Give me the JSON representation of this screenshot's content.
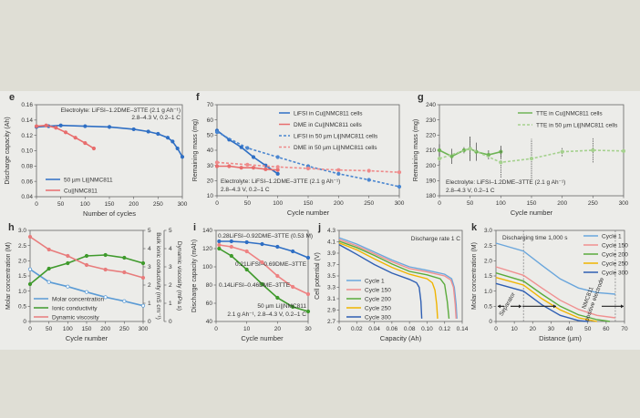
{
  "colors": {
    "outer_bg": "#dfded5",
    "figure_bg": "#ecece9",
    "axis": "#555555"
  },
  "chart_data": [
    {
      "id": "e",
      "panel_label": "e",
      "type": "line",
      "xlabel": "Number of cycles",
      "ylabel": "Discharge capacity (Ah)",
      "xlim": [
        0,
        300
      ],
      "ylim": [
        0.04,
        0.16
      ],
      "xticks": [
        "0",
        "50",
        "100",
        "150",
        "200",
        "250",
        "300"
      ],
      "yticks": [
        "0.04",
        "0.06",
        "0.08",
        "0.10",
        "0.12",
        "0.14",
        "0.16"
      ],
      "annotations": [
        "Electrolyte: LiFSI–1.2DME–3TTE (2.1 g Ah⁻¹)",
        "2.8–4.3 V, 0.2–1 C"
      ],
      "series": [
        {
          "name": "50 µm Li||NMC811",
          "color": "#2f6fc4",
          "dash": false,
          "x": [
            0,
            25,
            50,
            100,
            150,
            200,
            230,
            250,
            270,
            280,
            290,
            300
          ],
          "y": [
            0.131,
            0.132,
            0.133,
            0.132,
            0.131,
            0.128,
            0.125,
            0.122,
            0.117,
            0.112,
            0.103,
            0.092
          ]
        },
        {
          "name": "Cu||NMC811",
          "color": "#e86d6d",
          "dash": false,
          "x": [
            0,
            20,
            40,
            60,
            80,
            100,
            118
          ],
          "y": [
            0.132,
            0.133,
            0.13,
            0.124,
            0.117,
            0.11,
            0.103
          ]
        }
      ]
    },
    {
      "id": "f",
      "panel_label": "f",
      "type": "line",
      "xlabel": "Cycle number",
      "ylabel": "Remaining mass (mg)",
      "xlim": [
        0,
        300
      ],
      "ylim": [
        10,
        70
      ],
      "xticks": [
        "0",
        "50",
        "100",
        "150",
        "200",
        "250",
        "300"
      ],
      "yticks": [
        "10",
        "20",
        "30",
        "40",
        "50",
        "60",
        "70"
      ],
      "annotations": [
        "Electrolyte: LiFSI–1.2DME–3TTE (2.1 g Ah⁻¹)",
        "2.8–4.3 V, 0.2–1 C"
      ],
      "series": [
        {
          "name": "LiFSI in Cu||NMC811 cells",
          "color": "#2f6fc4",
          "dash": false,
          "x": [
            0,
            20,
            40,
            60,
            80,
            100
          ],
          "y": [
            53,
            47,
            42,
            35.5,
            30,
            24.5
          ]
        },
        {
          "name": "DME in Cu||NMC811 cells",
          "color": "#e86d6d",
          "dash": false,
          "x": [
            0,
            20,
            40,
            60,
            80,
            100
          ],
          "y": [
            29.5,
            29.5,
            28.5,
            28.5,
            27.5,
            27
          ]
        },
        {
          "name": "LiFSI in 50 µm Li||NMC811 cells",
          "color": "#4a86d0",
          "dash": true,
          "x": [
            0,
            50,
            100,
            150,
            200,
            250,
            300
          ],
          "y": [
            52,
            41.5,
            35.5,
            29.5,
            24.5,
            20.5,
            16
          ]
        },
        {
          "name": "DME in 50 µm Li||NMC811 cells",
          "color": "#ee8a8a",
          "dash": true,
          "x": [
            0,
            50,
            100,
            150,
            200,
            250,
            300
          ],
          "y": [
            32,
            30.5,
            29,
            28,
            27,
            26.5,
            25.5
          ]
        }
      ]
    },
    {
      "id": "g",
      "panel_label": "g",
      "type": "line",
      "xlabel": "Cycle number",
      "ylabel": "Remaining mass (mg)",
      "xlim": [
        0,
        300
      ],
      "ylim": [
        180,
        240
      ],
      "xticks": [
        "0",
        "50",
        "100",
        "150",
        "200",
        "250",
        "300"
      ],
      "yticks": [
        "180",
        "190",
        "200",
        "210",
        "220",
        "230",
        "240"
      ],
      "annotations": [
        "Electrolyte: LiFSI–1.2DME–3TTE (2.1 g Ah⁻¹)",
        "2.8–4.3 V, 0.2–1 C"
      ],
      "series": [
        {
          "name": "TTE in Cu||NMC811 cells",
          "color": "#6fb456",
          "dash": false,
          "x": [
            0,
            20,
            40,
            50,
            60,
            80,
            100
          ],
          "y": [
            210,
            206,
            210,
            211,
            209,
            207,
            209
          ],
          "error": [
            4,
            5,
            2,
            8,
            6,
            3,
            4
          ]
        },
        {
          "name": "TTE in 50 µm Li||NMC811 cells",
          "color": "#a5d18e",
          "dash": true,
          "x": [
            0,
            50,
            100,
            150,
            200,
            250,
            300
          ],
          "y": [
            204.5,
            211,
            202,
            204.5,
            209,
            210,
            209.5
          ],
          "error": [
            4,
            8,
            10,
            13,
            3,
            8,
            0
          ]
        }
      ]
    },
    {
      "id": "h",
      "panel_label": "h",
      "type": "line",
      "xlabel": "Cycle number",
      "ylabel": "Molar concentration (M)",
      "y2label": "Bulk ionic conductivity (mS cm⁻¹)",
      "y3label": "Dynamic viscosity (mPa s)",
      "xlim": [
        0,
        300
      ],
      "ylim": [
        0,
        3
      ],
      "y2lim": [
        0,
        5
      ],
      "y3lim": [
        0,
        5
      ],
      "xticks": [
        "0",
        "50",
        "100",
        "150",
        "200",
        "250",
        "300"
      ],
      "yticks": [
        "0",
        "0.5",
        "1.0",
        "1.5",
        "2.0",
        "2.5",
        "3.0"
      ],
      "y2ticks": [
        "0",
        "1",
        "2",
        "3",
        "4",
        "5"
      ],
      "y3ticks": [
        "0",
        "1",
        "2",
        "3",
        "4",
        "5"
      ],
      "y2color": "#4f9a36",
      "y3color": "#e87c7c",
      "series": [
        {
          "name": "Molar concentration",
          "color": "#5b9bd5",
          "dash": false,
          "axis": "y",
          "marker": "open",
          "x": [
            0,
            50,
            100,
            150,
            200,
            250,
            300
          ],
          "y": [
            1.72,
            1.3,
            1.15,
            0.97,
            0.8,
            0.67,
            0.52
          ]
        },
        {
          "name": "Ionic conductivity",
          "color": "#3f9a2c",
          "dash": false,
          "axis": "y2",
          "x": [
            0,
            50,
            100,
            150,
            200,
            250,
            300
          ],
          "y": [
            2.05,
            2.9,
            3.2,
            3.6,
            3.65,
            3.5,
            3.2
          ]
        },
        {
          "name": "Dynamic viscosity",
          "color": "#e87c7c",
          "dash": false,
          "axis": "y3",
          "x": [
            0,
            50,
            100,
            150,
            200,
            250,
            300
          ],
          "y": [
            4.65,
            3.95,
            3.6,
            3.1,
            2.85,
            2.7,
            2.4
          ]
        }
      ]
    },
    {
      "id": "i",
      "panel_label": "i",
      "type": "line",
      "xlabel": "Cycle number",
      "ylabel": "Discharge capacity (mAh)",
      "xlim": [
        0,
        30
      ],
      "ylim": [
        40,
        140
      ],
      "xticks": [
        "0",
        "10",
        "20",
        "30"
      ],
      "yticks": [
        "40",
        "60",
        "80",
        "100",
        "120",
        "140"
      ],
      "annotations": [
        "0.28LiFSI–0.92DME–3TTE (0.53 M)",
        "0.21LiFSI–0.69DME–3TTE",
        "0.14LiFSI–0.46DME–3TTE",
        "50 µm Li||NMC811",
        "2.1 g Ah⁻¹, 2.8–4.3 V, 0.2–1 C"
      ],
      "series": [
        {
          "color": "#2f6fc4",
          "dash": false,
          "x": [
            1,
            5,
            10,
            15,
            20,
            25,
            30
          ],
          "y": [
            128,
            128,
            127,
            125,
            122,
            117,
            110
          ]
        },
        {
          "color": "#ee8282",
          "dash": false,
          "x": [
            1,
            5,
            10,
            15,
            20,
            25,
            30
          ],
          "y": [
            124,
            122,
            117,
            105,
            90,
            78,
            70
          ]
        },
        {
          "color": "#3f9a2c",
          "dash": false,
          "x": [
            1,
            5,
            10,
            15,
            20,
            25,
            30
          ],
          "y": [
            120,
            112,
            97,
            81,
            66,
            56,
            51
          ]
        }
      ]
    },
    {
      "id": "j",
      "panel_label": "j",
      "type": "line",
      "xlabel": "Capacity (Ah)",
      "ylabel": "Cell potential (V)",
      "xlim": [
        0,
        0.14
      ],
      "ylim": [
        2.7,
        4.3
      ],
      "xticks": [
        "0",
        "0.02",
        "0.04",
        "0.06",
        "0.08",
        "0.10",
        "0.12",
        "0.14"
      ],
      "yticks": [
        "2.7",
        "2.9",
        "3.1",
        "3.3",
        "3.5",
        "3.7",
        "3.9",
        "4.1",
        "4.3"
      ],
      "annotations": [
        "Discharge rate 1 C"
      ],
      "series": [
        {
          "name": "Cycle 1",
          "color": "#6aa6dc",
          "x": [
            0,
            0.02,
            0.04,
            0.06,
            0.08,
            0.1,
            0.12,
            0.128,
            0.131,
            0.133,
            0.134
          ],
          "y": [
            4.17,
            4.06,
            3.92,
            3.78,
            3.66,
            3.6,
            3.53,
            3.45,
            3.3,
            3.0,
            2.75
          ]
        },
        {
          "name": "Cycle 150",
          "color": "#f09090",
          "x": [
            0,
            0.02,
            0.04,
            0.06,
            0.08,
            0.1,
            0.12,
            0.127,
            0.13,
            0.132,
            0.133
          ],
          "y": [
            4.14,
            4.03,
            3.89,
            3.75,
            3.63,
            3.57,
            3.5,
            3.43,
            3.3,
            3.0,
            2.75
          ]
        },
        {
          "name": "Cycle 200",
          "color": "#5aab3c",
          "x": [
            0,
            0.02,
            0.04,
            0.06,
            0.08,
            0.1,
            0.115,
            0.12,
            0.123,
            0.125
          ],
          "y": [
            4.11,
            4.0,
            3.86,
            3.71,
            3.58,
            3.52,
            3.45,
            3.35,
            3.05,
            2.75
          ]
        },
        {
          "name": "Cycle 250",
          "color": "#f0b400",
          "x": [
            0,
            0.02,
            0.04,
            0.06,
            0.08,
            0.1,
            0.106,
            0.109,
            0.111,
            0.112
          ],
          "y": [
            4.08,
            3.96,
            3.8,
            3.65,
            3.53,
            3.45,
            3.38,
            3.25,
            3.0,
            2.75
          ]
        },
        {
          "name": "Cycle 300",
          "color": "#2f5fb3",
          "x": [
            0,
            0.02,
            0.04,
            0.06,
            0.08,
            0.088,
            0.091,
            0.093,
            0.094
          ],
          "y": [
            4.05,
            3.88,
            3.7,
            3.55,
            3.44,
            3.38,
            3.3,
            3.05,
            2.75
          ]
        }
      ]
    },
    {
      "id": "k",
      "panel_label": "k",
      "type": "line",
      "xlabel": "Distance (µm)",
      "ylabel": "Molar concentration (M)",
      "xlim": [
        0,
        70
      ],
      "ylim": [
        0,
        3
      ],
      "xticks": [
        "0",
        "10",
        "20",
        "30",
        "40",
        "50",
        "60",
        "70"
      ],
      "yticks": [
        "0",
        "0.5",
        "1.0",
        "1.5",
        "2.0",
        "2.5",
        "3.0"
      ],
      "annotations": [
        "Discharging time 1,000 s",
        "Separator",
        "NMC811 positive electrode"
      ],
      "vlines": [
        15,
        65
      ],
      "series": [
        {
          "name": "Cycle 1",
          "color": "#6aa6dc",
          "x": [
            0,
            15,
            25,
            35,
            45,
            55,
            65
          ],
          "y": [
            2.58,
            2.32,
            1.85,
            1.4,
            1.1,
            0.95,
            0.9
          ]
        },
        {
          "name": "Cycle 150",
          "color": "#f09090",
          "x": [
            0,
            15,
            25,
            35,
            45,
            55,
            65
          ],
          "y": [
            1.8,
            1.52,
            1.1,
            0.7,
            0.4,
            0.2,
            0.12
          ]
        },
        {
          "name": "Cycle 200",
          "color": "#5aab3c",
          "x": [
            0,
            15,
            25,
            35,
            45,
            55,
            62
          ],
          "y": [
            1.6,
            1.33,
            0.9,
            0.5,
            0.22,
            0.06,
            0
          ]
        },
        {
          "name": "Cycle 250",
          "color": "#f0b400",
          "x": [
            0,
            15,
            25,
            35,
            45,
            55
          ],
          "y": [
            1.45,
            1.2,
            0.75,
            0.38,
            0.12,
            0
          ]
        },
        {
          "name": "Cycle 300",
          "color": "#2f5fb3",
          "x": [
            0,
            15,
            25,
            35,
            45,
            50
          ],
          "y": [
            1.25,
            1.0,
            0.55,
            0.2,
            0.03,
            0
          ]
        }
      ]
    }
  ]
}
